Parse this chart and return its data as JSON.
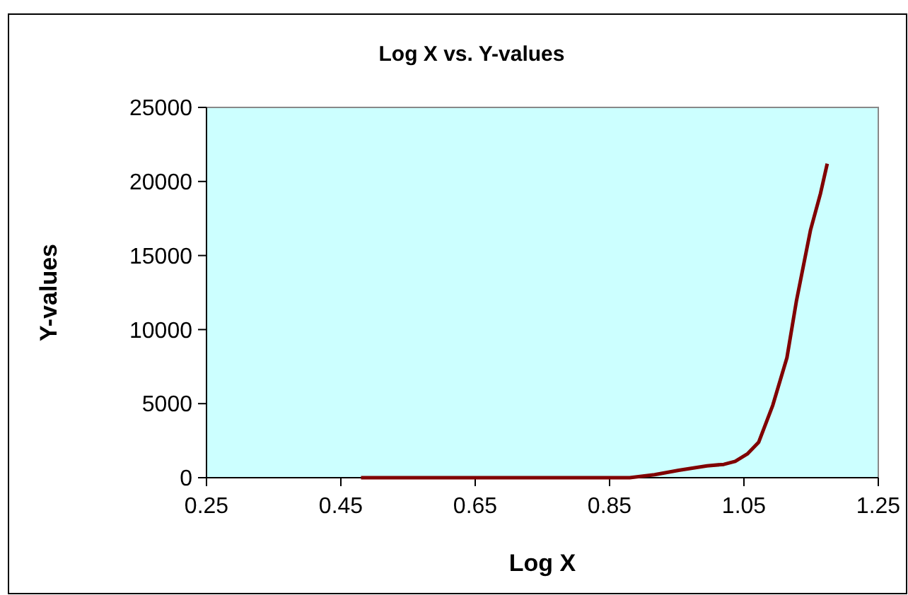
{
  "chart_data": {
    "type": "line",
    "title": "Log X vs. Y-values",
    "xlabel": "Log X",
    "ylabel": "Y-values",
    "series": [
      {
        "color": "#800000",
        "x": [
          0.48,
          0.6,
          0.7,
          0.8,
          0.88,
          0.917,
          0.953,
          0.995,
          1.02,
          1.037,
          1.055,
          1.072,
          1.093,
          1.114,
          1.128,
          1.149,
          1.164,
          1.174
        ],
        "values": [
          0,
          0,
          0,
          0,
          0,
          200,
          500,
          800,
          900,
          1100,
          1600,
          2400,
          4900,
          8100,
          11900,
          16700,
          19200,
          21200
        ]
      }
    ],
    "xlim": [
      0.25,
      1.25
    ],
    "xticks": [
      {
        "value": 0.25,
        "label": "0.25"
      },
      {
        "value": 0.45,
        "label": "0.45"
      },
      {
        "value": 0.65,
        "label": "0.65"
      },
      {
        "value": 0.85,
        "label": "0.85"
      },
      {
        "value": 1.05,
        "label": "1.05"
      },
      {
        "value": 1.25,
        "label": "1.25"
      }
    ],
    "ylim": [
      0,
      25000
    ],
    "yticks": [
      0,
      5000,
      10000,
      15000,
      20000,
      25000
    ],
    "marker": "none",
    "line_style": "solid"
  }
}
